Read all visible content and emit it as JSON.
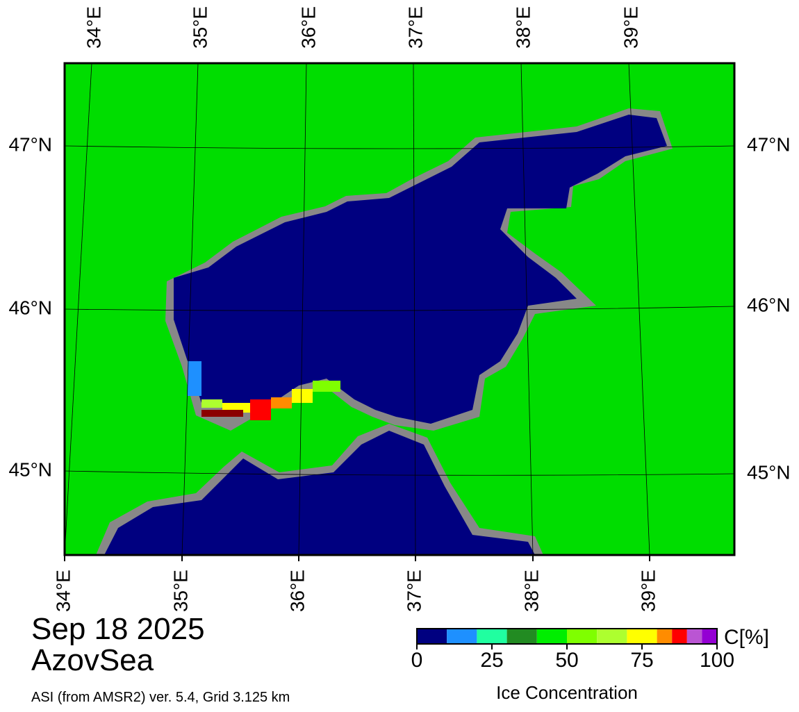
{
  "map": {
    "date": "Sep 18 2025",
    "region": "AzovSea",
    "source": "ASI (from AMSR2) ver. 5.4,  Grid 3.125 km",
    "top_labels": [
      "34°E",
      "35°E",
      "36°E",
      "37°E",
      "38°E",
      "39°E"
    ],
    "bottom_labels": [
      "34°E",
      "35°E",
      "36°E",
      "37°E",
      "38°E",
      "39°E"
    ],
    "left_labels": [
      "47°N",
      "46°N",
      "45°N"
    ],
    "right_labels": [
      "47°N",
      "46°N",
      "45°N"
    ],
    "colorbar": {
      "unit": "C[%]",
      "title": "Ice Concentration",
      "range": [
        0,
        100
      ],
      "ticks": [
        0,
        25,
        50,
        75,
        100
      ],
      "bins": [
        0,
        10,
        20,
        30,
        40,
        50,
        60,
        70,
        80,
        85,
        90,
        95,
        100
      ],
      "colors": [
        "#000080",
        "#1e90ff",
        "#20ffa0",
        "#228b22",
        "#00ee00",
        "#7fff00",
        "#adff2f",
        "#ffff00",
        "#ff8c00",
        "#ff0000",
        "#ba55d3",
        "#9400d3"
      ]
    }
  }
}
